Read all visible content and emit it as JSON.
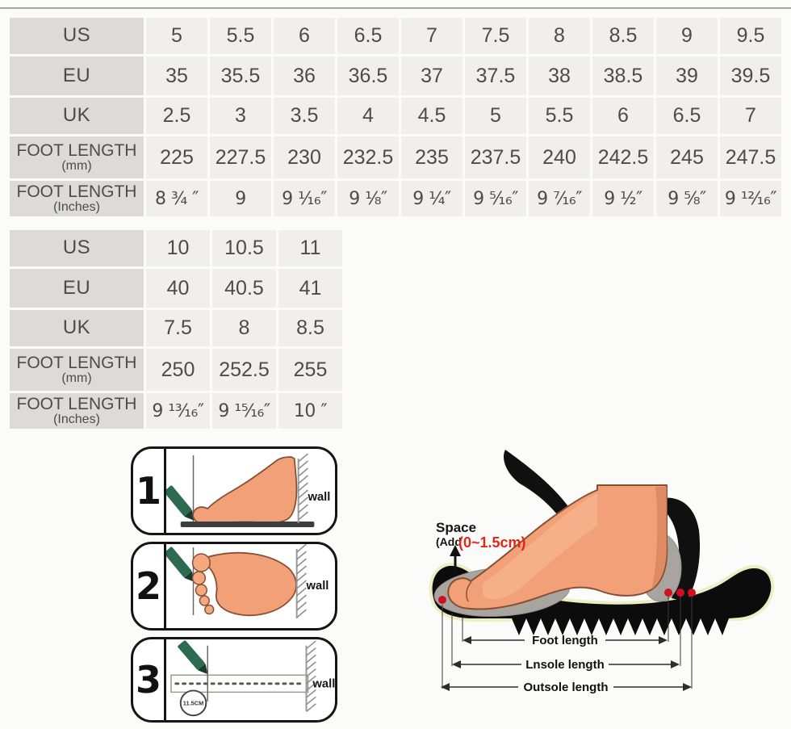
{
  "page": {
    "background": "#fbfbfa",
    "topline_color": "#a9a7a7"
  },
  "size_chart_primary": {
    "rows": [
      {
        "label": "US",
        "sub": "",
        "values": [
          "5",
          "5.5",
          "6",
          "6.5",
          "7",
          "7.5",
          "8",
          "8.5",
          "9",
          "9.5"
        ]
      },
      {
        "label": "EU",
        "sub": "",
        "values": [
          "35",
          "35.5",
          "36",
          "36.5",
          "37",
          "37.5",
          "38",
          "38.5",
          "39",
          "39.5"
        ]
      },
      {
        "label": "UK",
        "sub": "",
        "values": [
          "2.5",
          "3",
          "3.5",
          "4",
          "4.5",
          "5",
          "5.5",
          "6",
          "6.5",
          "7"
        ]
      },
      {
        "label": "FOOT LENGTH",
        "sub": "(mm)",
        "values": [
          "225",
          "227.5",
          "230",
          "232.5",
          "235",
          "237.5",
          "240",
          "242.5",
          "245",
          "247.5"
        ]
      },
      {
        "label": "FOOT LENGTH",
        "sub": "(Inches)",
        "values": [
          "8 ³⁄₄ ″",
          "9",
          "9 ¹⁄₁₆″",
          "9 ¹⁄₈″",
          "9 ¹⁄₄″",
          "9 ⁵⁄₁₆″",
          "9 ⁷⁄₁₆″",
          "9 ¹⁄₂″",
          "9 ⁵⁄₈″",
          "9 ¹²⁄₁₆″"
        ]
      }
    ]
  },
  "size_chart_secondary": {
    "rows": [
      {
        "label": "US",
        "sub": "",
        "values": [
          "10",
          "10.5",
          "11"
        ]
      },
      {
        "label": "EU",
        "sub": "",
        "values": [
          "40",
          "40.5",
          "41"
        ]
      },
      {
        "label": "UK",
        "sub": "",
        "values": [
          "7.5",
          "8",
          "8.5"
        ]
      },
      {
        "label": "FOOT LENGTH",
        "sub": "(mm)",
        "values": [
          "250",
          "252.5",
          "255"
        ]
      },
      {
        "label": "FOOT LENGTH",
        "sub": "(Inches)",
        "values": [
          "9 ¹³⁄₁₆″",
          "9 ¹⁵⁄₁₆″",
          "10 ″"
        ]
      }
    ]
  },
  "measure_steps": [
    {
      "number": "1",
      "wall_label": "wall"
    },
    {
      "number": "2",
      "wall_label": "wall"
    },
    {
      "number": "3",
      "wall_label": "wall",
      "ruler_note": "11.5CM"
    }
  ],
  "foot_diagram": {
    "space_title": "Space",
    "space_prefix": "(Add",
    "space_value": "(0~1.5cm)",
    "space_value_color": "#e02818",
    "dot_color": "#cf1020",
    "measure_labels": [
      "Foot length",
      "Lnsole length",
      "Outsole length"
    ]
  }
}
